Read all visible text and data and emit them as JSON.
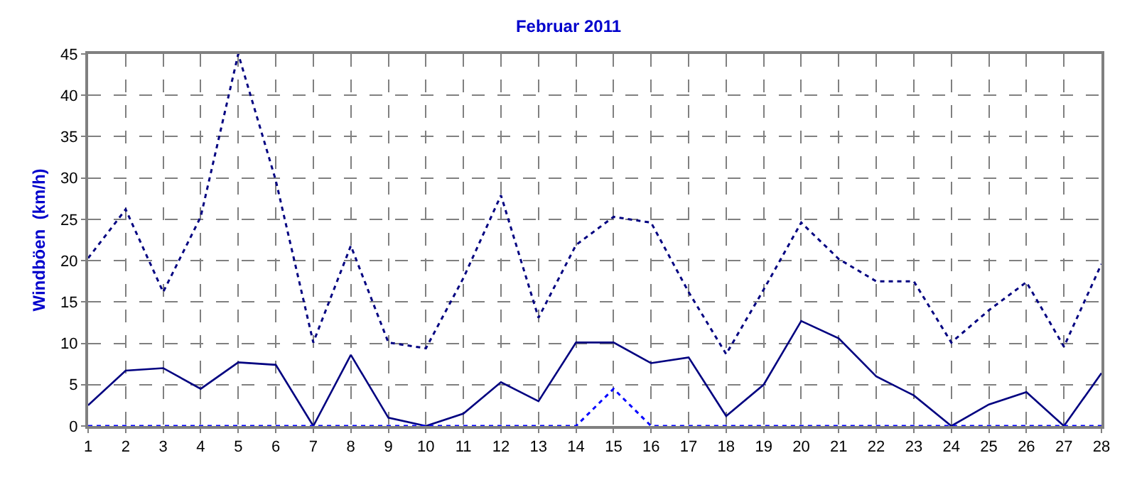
{
  "chart_data": {
    "type": "line",
    "title": "Februar 2011",
    "ylabel": "Windböen  (km/h)",
    "x": [
      1,
      2,
      3,
      4,
      5,
      6,
      7,
      8,
      9,
      10,
      11,
      12,
      13,
      14,
      15,
      16,
      17,
      18,
      19,
      20,
      21,
      22,
      23,
      24,
      25,
      26,
      27,
      28
    ],
    "xlim": [
      1,
      28
    ],
    "xticks": [
      1,
      2,
      3,
      4,
      5,
      6,
      7,
      8,
      9,
      10,
      11,
      12,
      13,
      14,
      15,
      16,
      17,
      18,
      19,
      20,
      21,
      22,
      23,
      24,
      25,
      26,
      27,
      28
    ],
    "ylim": [
      0,
      45
    ],
    "yticks": [
      0,
      5,
      10,
      15,
      20,
      25,
      30,
      35,
      40,
      45
    ],
    "grid": true,
    "marker": "none",
    "series": [
      {
        "color": "#000080",
        "line_style": "dotted",
        "values": [
          20.3,
          26.2,
          16.2,
          25.3,
          45,
          29.7,
          10.1,
          21.8,
          10.1,
          9.4,
          17.9,
          27.9,
          13.1,
          21.9,
          25.3,
          24.6,
          16.2,
          8.7,
          16.5,
          24.6,
          20.2,
          17.5,
          17.5,
          10.1,
          14.0,
          17.4,
          9.6,
          19.6
        ]
      },
      {
        "color": "#000080",
        "line_style": "solid",
        "values": [
          2.5,
          6.7,
          7.0,
          4.5,
          7.7,
          7.4,
          0,
          8.6,
          1.0,
          0,
          1.5,
          5.3,
          3.0,
          10.1,
          10.1,
          7.6,
          8.3,
          1.2,
          5.0,
          12.7,
          10.6,
          6.0,
          3.7,
          0,
          2.6,
          4.1,
          0,
          6.4
        ]
      },
      {
        "color": "#0000ff",
        "line_style": "dotted",
        "values": [
          0,
          0,
          0,
          0,
          0,
          0,
          0,
          0,
          0,
          0,
          0,
          0,
          0,
          0,
          4.5,
          0,
          0,
          0,
          0,
          0,
          0,
          0,
          0,
          0,
          0,
          0,
          0,
          0
        ]
      }
    ]
  }
}
